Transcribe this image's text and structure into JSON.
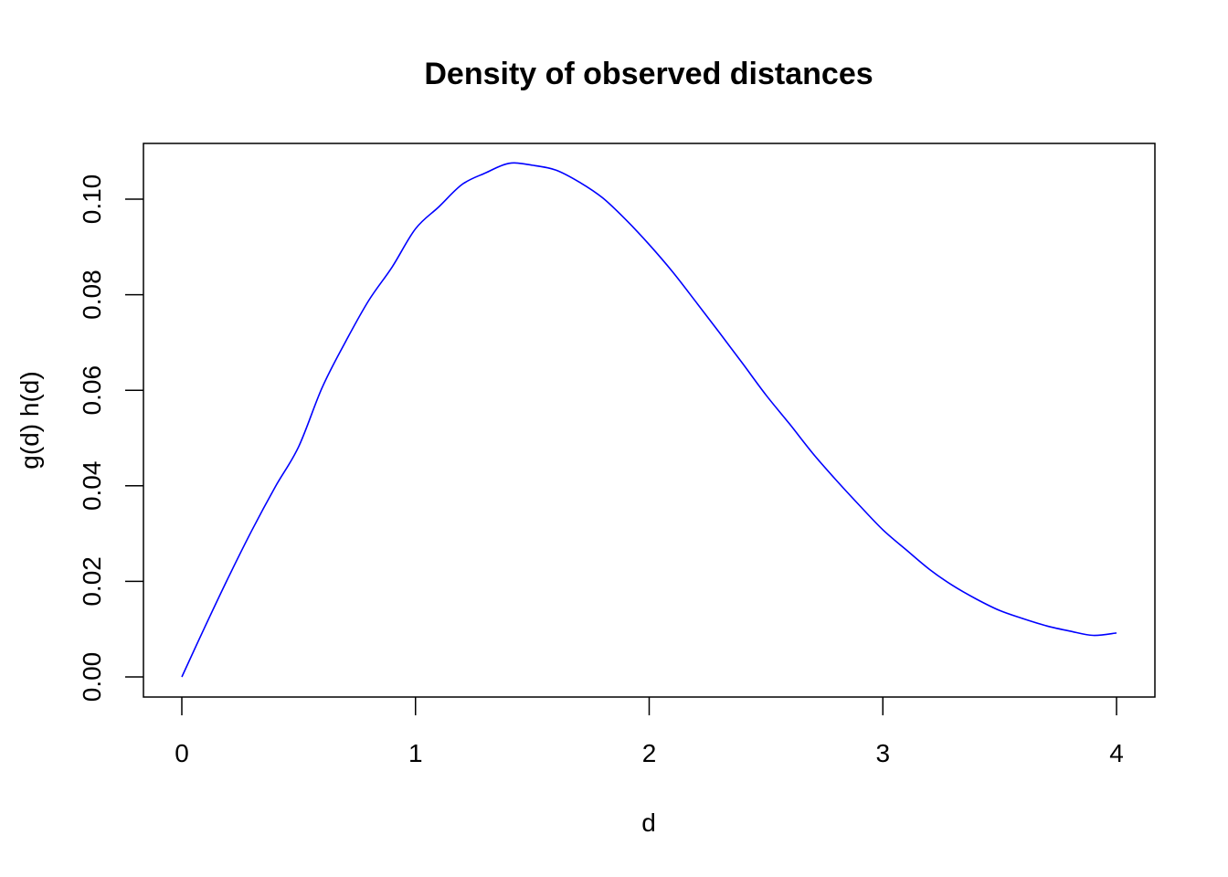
{
  "chart_data": {
    "type": "line",
    "title": "Density of observed distances",
    "xlabel": "d",
    "ylabel": "g(d) h(d)",
    "xlim": [
      0,
      4
    ],
    "ylim": [
      0,
      0.107
    ],
    "x_ticks": [
      0,
      1,
      2,
      3,
      4
    ],
    "x_tick_labels": [
      "0",
      "1",
      "2",
      "3",
      "4"
    ],
    "y_ticks": [
      0,
      0.02,
      0.04,
      0.06,
      0.08,
      0.1
    ],
    "y_tick_labels": [
      "0.00",
      "0.02",
      "0.04",
      "0.06",
      "0.08",
      "0.10"
    ],
    "grid": false,
    "legend": "none",
    "series": [
      {
        "color": "#0000ff",
        "x": [
          0,
          0.1,
          0.2,
          0.3,
          0.4,
          0.5,
          0.6,
          0.7,
          0.8,
          0.9,
          1.0,
          1.1,
          1.2,
          1.3,
          1.4,
          1.5,
          1.6,
          1.7,
          1.8,
          1.9,
          2.0,
          2.1,
          2.2,
          2.3,
          2.4,
          2.5,
          2.6,
          2.7,
          2.8,
          2.9,
          3.0,
          3.1,
          3.2,
          3.3,
          3.4,
          3.5,
          3.6,
          3.7,
          3.8,
          3.9,
          4.0
        ],
        "y": [
          0,
          0.0106,
          0.0209,
          0.0307,
          0.0398,
          0.0482,
          0.0605,
          0.0701,
          0.0788,
          0.0858,
          0.0938,
          0.0984,
          0.1031,
          0.1055,
          0.1075,
          0.1071,
          0.1061,
          0.1036,
          0.1003,
          0.0957,
          0.0905,
          0.0848,
          0.0785,
          0.0721,
          0.0656,
          0.059,
          0.053,
          0.0468,
          0.0412,
          0.0359,
          0.0308,
          0.0266,
          0.0225,
          0.0191,
          0.0163,
          0.0139,
          0.0122,
          0.0107,
          0.0096,
          0.0087,
          0.0092
        ]
      }
    ]
  }
}
